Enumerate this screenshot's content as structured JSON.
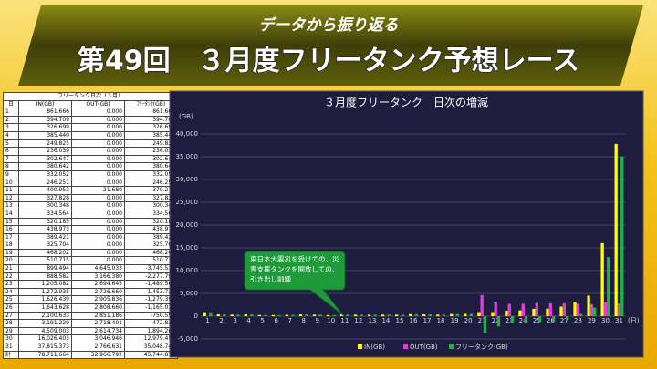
{
  "header": {
    "subtitle": "データから振り返る",
    "title": "第49回　３月度フリータンク予想レース"
  },
  "table": {
    "title": "フリータンク日次（３月）",
    "columns": [
      "日",
      "IN(GB)",
      "OUT(GB)",
      "ﾌﾘｰﾀﾝｸ(GB)"
    ],
    "rows": [
      [
        "1",
        "861.666",
        "0.000",
        "861.666"
      ],
      [
        "2",
        "394.709",
        "0.000",
        "394.709"
      ],
      [
        "3",
        "326.699",
        "0.000",
        "326.699"
      ],
      [
        "4",
        "385.440",
        "0.000",
        "385.440"
      ],
      [
        "5",
        "249.825",
        "0.000",
        "249.825"
      ],
      [
        "6",
        "236.039",
        "0.000",
        "236.039"
      ],
      [
        "7",
        "302.647",
        "0.000",
        "302.647"
      ],
      [
        "8",
        "380.642",
        "0.000",
        "380.642"
      ],
      [
        "9",
        "332.052",
        "0.000",
        "332.052"
      ],
      [
        "10",
        "246.251",
        "0.000",
        "246.251"
      ],
      [
        "11",
        "400.953",
        "21.680",
        "379.273"
      ],
      [
        "12",
        "327.828",
        "0.000",
        "327.828"
      ],
      [
        "13",
        "300.348",
        "0.000",
        "300.348"
      ],
      [
        "14",
        "334.564",
        "0.000",
        "334.564"
      ],
      [
        "15",
        "320.185",
        "0.000",
        "320.185"
      ],
      [
        "16",
        "438.973",
        "0.000",
        "438.973"
      ],
      [
        "17",
        "389.421",
        "0.000",
        "389.421"
      ],
      [
        "18",
        "325.704",
        "0.000",
        "325.704"
      ],
      [
        "19",
        "468.202",
        "0.000",
        "468.202"
      ],
      [
        "20",
        "510.715",
        "0.000",
        "510.715"
      ],
      [
        "21",
        "899.494",
        "4,645.033",
        "-3,745.539"
      ],
      [
        "22",
        "888.582",
        "3,166.380",
        "-2,277.798"
      ],
      [
        "23",
        "1,205.082",
        "2,694.645",
        "-1,489.563"
      ],
      [
        "24",
        "1,272.935",
        "2,726.660",
        "-1,453.725"
      ],
      [
        "25",
        "1,626.439",
        "2,905.836",
        "-1,279.397"
      ],
      [
        "26",
        "1,643.628",
        "2,808.660",
        "-1,165.032"
      ],
      [
        "27",
        "2,100.633",
        "2,851.186",
        "-750.553"
      ],
      [
        "28",
        "3,191.229",
        "2,718.401",
        "472.828"
      ],
      [
        "29",
        "4,509.003",
        "2,614.734",
        "1,894.269"
      ],
      [
        "30",
        "16,026.403",
        "3,046.946",
        "12,979.457"
      ],
      [
        "31",
        "37,815.373",
        "2,766.631",
        "35,048.742"
      ],
      [
        "計",
        "78,711.664",
        "32,966.792",
        "45,744.872"
      ]
    ]
  },
  "chart_data": {
    "type": "bar",
    "title": "３月度フリータンク　日次の増減",
    "y_label": "(GB)",
    "x_label": "(日)",
    "categories": [
      "1",
      "2",
      "3",
      "4",
      "5",
      "6",
      "7",
      "8",
      "9",
      "10",
      "11",
      "12",
      "13",
      "14",
      "15",
      "16",
      "17",
      "18",
      "19",
      "20",
      "21",
      "22",
      "23",
      "24",
      "25",
      "26",
      "27",
      "28",
      "29",
      "30",
      "31"
    ],
    "series": [
      {
        "name": "IN(GB)",
        "color": "#ffff00",
        "values": [
          861.666,
          394.709,
          326.699,
          385.44,
          249.825,
          236.039,
          302.647,
          380.642,
          332.052,
          246.251,
          400.953,
          327.828,
          300.348,
          334.564,
          320.185,
          438.973,
          389.421,
          325.704,
          468.202,
          510.715,
          899.494,
          888.582,
          1205.082,
          1272.935,
          1626.439,
          1643.628,
          2100.633,
          3191.229,
          4509.003,
          16026.403,
          37815.373
        ]
      },
      {
        "name": "OUT(GB)",
        "color": "#e23ce0",
        "values": [
          0,
          0,
          0,
          0,
          0,
          0,
          0,
          0,
          0,
          0,
          21.68,
          0,
          0,
          0,
          0,
          0,
          0,
          0,
          0,
          0,
          4645.033,
          3166.38,
          2694.645,
          2726.66,
          2905.836,
          2808.66,
          2851.186,
          2718.401,
          2614.734,
          3046.946,
          2766.631
        ]
      },
      {
        "name": "フリータンク(GB)",
        "color": "#22b04a",
        "values": [
          861.666,
          394.709,
          326.699,
          385.44,
          249.825,
          236.039,
          302.647,
          380.642,
          332.052,
          246.251,
          379.273,
          327.828,
          300.348,
          334.564,
          320.185,
          438.973,
          389.421,
          325.704,
          468.202,
          510.715,
          -3745.539,
          -2277.798,
          -1489.563,
          -1453.725,
          -1279.397,
          -1165.032,
          -750.553,
          472.828,
          1894.269,
          12979.457,
          35048.742
        ]
      }
    ],
    "ylim": [
      -5000,
      40000
    ],
    "yticks": [
      {
        "value": -5000,
        "label": "-5,000"
      },
      0,
      {
        "value": 5000,
        "label": "5,000"
      },
      {
        "value": 10000,
        "label": "10,000"
      },
      {
        "value": 15000,
        "label": "15,000"
      },
      {
        "value": 20000,
        "label": "20,000"
      },
      {
        "value": 25000,
        "label": "25,000"
      },
      {
        "value": 30000,
        "label": "30,000"
      },
      {
        "value": 35000,
        "label": "35,000"
      },
      {
        "value": 40000,
        "label": "40,000"
      }
    ],
    "grid": true,
    "legend": "bottom",
    "annotation": [
      "東日本大震災を受けての、災",
      "害支援タンクを開放しての、",
      "引き出し訓練"
    ]
  }
}
